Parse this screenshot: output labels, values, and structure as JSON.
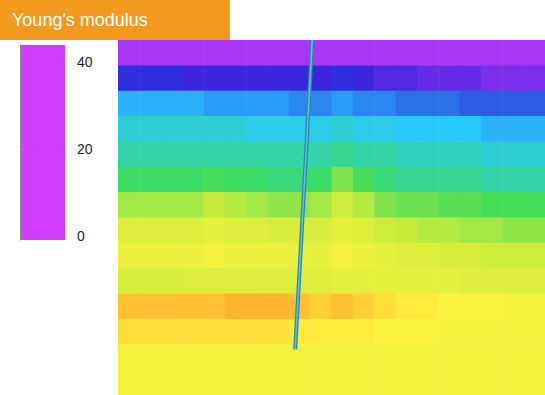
{
  "chart_data": {
    "type": "heatmap",
    "title": "Young's modulus",
    "tick_labels": false,
    "xlim": [
      0,
      20
    ],
    "ylim": [
      0,
      14
    ],
    "colorbar": {
      "range": [
        -1,
        44
      ],
      "ticks": [
        0,
        20,
        40
      ]
    },
    "cells": [
      [
        1,
        1,
        1,
        1,
        1,
        1,
        1,
        1,
        1,
        1,
        1,
        1,
        1,
        1,
        1,
        1,
        1,
        1,
        1,
        1
      ],
      [
        7,
        7,
        7,
        6,
        6,
        6,
        6,
        6,
        6,
        6,
        7,
        6,
        5,
        5,
        4,
        4,
        4,
        3,
        3,
        3
      ],
      [
        13,
        13,
        13,
        13,
        12,
        12,
        12,
        12,
        11,
        11,
        12,
        11,
        11,
        10,
        10,
        10,
        9,
        9,
        9,
        9
      ],
      [
        16,
        16,
        16,
        16,
        16,
        16,
        15,
        15,
        15,
        15,
        16,
        15,
        15,
        14,
        14,
        14,
        14,
        13,
        13,
        13
      ],
      [
        18,
        18,
        18,
        18,
        18,
        18,
        18,
        18,
        18,
        18,
        19,
        18,
        18,
        17,
        17,
        17,
        17,
        16,
        16,
        16
      ],
      [
        21,
        21,
        21,
        21,
        22,
        21,
        21,
        20,
        20,
        21,
        25,
        22,
        20,
        19,
        19,
        19,
        19,
        18,
        18,
        18
      ],
      [
        27,
        27,
        27,
        27,
        29,
        28,
        27,
        26,
        26,
        27,
        30,
        28,
        25,
        24,
        24,
        23,
        23,
        22,
        22,
        22
      ],
      [
        32,
        32,
        32,
        32,
        33,
        32,
        32,
        31,
        31,
        31,
        33,
        32,
        30,
        29,
        28,
        28,
        27,
        27,
        26,
        26
      ],
      [
        34,
        34,
        34,
        34,
        35,
        34,
        34,
        34,
        33,
        33,
        35,
        34,
        33,
        32,
        32,
        31,
        31,
        30,
        30,
        30
      ],
      [
        31,
        31,
        31,
        32,
        32,
        32,
        32,
        32,
        32,
        32,
        33,
        33,
        33,
        33,
        33,
        33,
        32,
        32,
        32,
        32
      ],
      [
        40,
        40,
        40,
        40,
        40,
        41,
        41,
        41,
        40,
        39,
        40,
        39,
        38,
        37,
        37,
        36,
        36,
        36,
        35,
        35
      ],
      [
        38,
        38,
        38,
        38,
        38,
        38,
        38,
        38,
        37,
        37,
        37,
        37,
        36,
        36,
        36,
        35,
        35,
        35,
        35,
        35
      ],
      [
        35,
        35,
        35,
        35,
        35,
        35,
        35,
        35,
        35,
        35,
        35,
        35,
        35,
        35,
        35,
        35,
        35,
        35,
        35,
        35
      ],
      [
        35,
        35,
        35,
        35,
        35,
        35,
        35,
        35,
        35,
        35,
        35,
        35,
        35,
        35,
        35,
        35,
        35,
        35,
        35,
        35
      ]
    ],
    "well": {
      "x": [
        9.1,
        8.3
      ],
      "y": [
        0,
        12.2
      ]
    }
  }
}
